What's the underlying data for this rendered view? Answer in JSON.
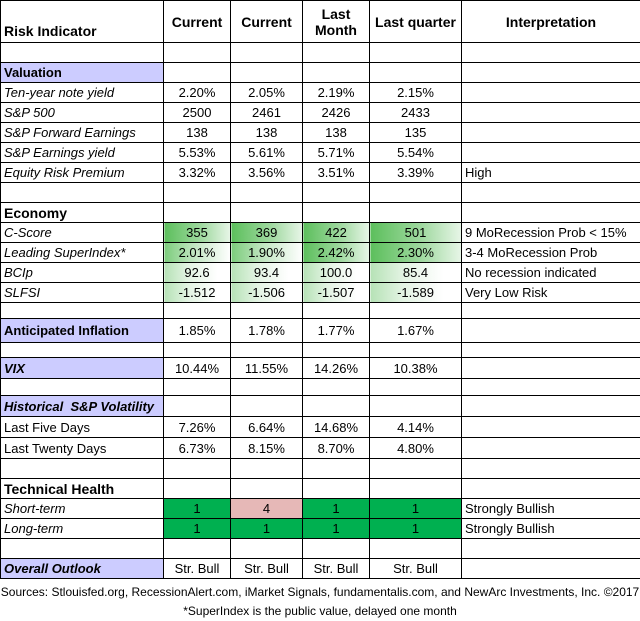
{
  "header": {
    "risk_indicator": "Risk Indicator",
    "current1": "Current",
    "current2": "Current",
    "last_month_l1": "Last",
    "last_month_l2": "Month",
    "last_quarter": "Last quarter",
    "interpretation": "Interpretation"
  },
  "sections": {
    "valuation": "Valuation",
    "economy": "Economy",
    "inflation": "Anticipated Inflation",
    "vix": "VIX",
    "volatility": "Historical  S&P Volatility",
    "technical": "Technical Health",
    "outlook": "Overall Outlook"
  },
  "rows": {
    "ten_year": {
      "label": "Ten-year note yield",
      "c1": "2.20%",
      "c2": "2.05%",
      "lm": "2.19%",
      "lq": "2.15%",
      "interp": ""
    },
    "sp500": {
      "label": "S&P 500",
      "c1": "2500",
      "c2": "2461",
      "lm": "2426",
      "lq": "2433",
      "interp": ""
    },
    "fwd_earn": {
      "label": "S&P Forward Earnings",
      "c1": "138",
      "c2": "138",
      "lm": "138",
      "lq": "135",
      "interp": ""
    },
    "earn_yield": {
      "label": "S&P Earnings yield",
      "c1": "5.53%",
      "c2": "5.61%",
      "lm": "5.71%",
      "lq": "5.54%",
      "interp": ""
    },
    "erp": {
      "label": "Equity Risk Premium",
      "c1": "3.32%",
      "c2": "3.56%",
      "lm": "3.51%",
      "lq": "3.39%",
      "interp": "High"
    },
    "cscore": {
      "label": "C-Score",
      "c1": "355",
      "c2": "369",
      "lm": "422",
      "lq": "501",
      "interp": "9 MoRecession Prob < 15%"
    },
    "superindex": {
      "label": "Leading SuperIndex*",
      "c1": "2.01%",
      "c2": "1.90%",
      "lm": "2.42%",
      "lq": "2.30%",
      "interp": "3-4 MoRecession Prob"
    },
    "bcip": {
      "label": "BCIp",
      "c1": "92.6",
      "c2": "93.4",
      "lm": "100.0",
      "lq": "85.4",
      "interp": "No recession indicated"
    },
    "slfsi": {
      "label": "SLFSI",
      "c1": "-1.512",
      "c2": "-1.506",
      "lm": "-1.507",
      "lq": "-1.589",
      "interp": "Very Low Risk"
    },
    "inflation": {
      "c1": "1.85%",
      "c2": "1.78%",
      "lm": "1.77%",
      "lq": "1.67%",
      "interp": ""
    },
    "vix": {
      "c1": "10.44%",
      "c2": "11.55%",
      "lm": "14.26%",
      "lq": "10.38%",
      "interp": ""
    },
    "five_days": {
      "label": "Last Five Days",
      "c1": "7.26%",
      "c2": "6.64%",
      "lm": "14.68%",
      "lq": "4.14%",
      "interp": ""
    },
    "twenty_days": {
      "label": "Last Twenty Days",
      "c1": "6.73%",
      "c2": "8.15%",
      "lm": "8.70%",
      "lq": "4.80%",
      "interp": ""
    },
    "short_term": {
      "label": "Short-term",
      "c1": "1",
      "c2": "4",
      "lm": "1",
      "lq": "1",
      "interp": "Strongly Bullish"
    },
    "long_term": {
      "label": "Long-term",
      "c1": "1",
      "c2": "1",
      "lm": "1",
      "lq": "1",
      "interp": "Strongly Bullish"
    },
    "outlook": {
      "c1": "Str. Bull",
      "c2": "Str. Bull",
      "lm": "Str. Bull",
      "lq": "Str. Bull",
      "interp": ""
    }
  },
  "footer": {
    "sources": "Sources: Stlouisfed.org, RecessionAlert.com, iMarket Signals, fundamentalis.com, and NewArc Investments, Inc. ©2017",
    "note": "*SuperIndex is the public value, delayed one month"
  },
  "colors": {
    "section_bg": "#ccccff",
    "green": "#00b050",
    "pink": "#e6b8b7"
  }
}
